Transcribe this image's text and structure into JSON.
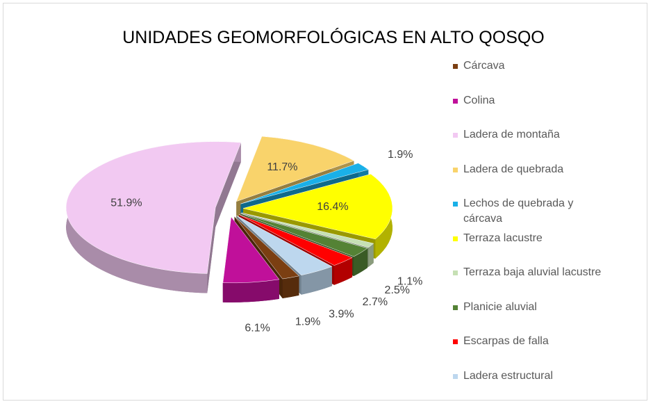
{
  "chart_data": {
    "type": "pie",
    "title": "UNIDADES GEOMORFOLÓGICAS EN ALTO QOSQO",
    "categories": [
      "Cárcava",
      "Colina",
      "Ladera de montaña",
      "Ladera de quebrada",
      "Lechos de quebrada y cárcava",
      "Terraza lacustre",
      "Terraza baja aluvial lacustre",
      "Planicie aluvial",
      "Escarpas de falla",
      "Ladera estructural"
    ],
    "values": [
      1.9,
      6.1,
      51.9,
      11.7,
      1.9,
      16.4,
      1.1,
      2.5,
      2.7,
      3.9
    ],
    "value_labels": [
      "1.9%",
      "6.1%",
      "51.9%",
      "11.7%",
      "1.9%",
      "16.4%",
      "1.1%",
      "2.5%",
      "2.7%",
      "3.9%"
    ],
    "colors": [
      "#7b3f12",
      "#c0109a",
      "#f2c9f2",
      "#f9d36b",
      "#1ab0e8",
      "#ffff00",
      "#c6e0b4",
      "#548235",
      "#ff0000",
      "#bdd7ee"
    ],
    "legend": "right"
  }
}
